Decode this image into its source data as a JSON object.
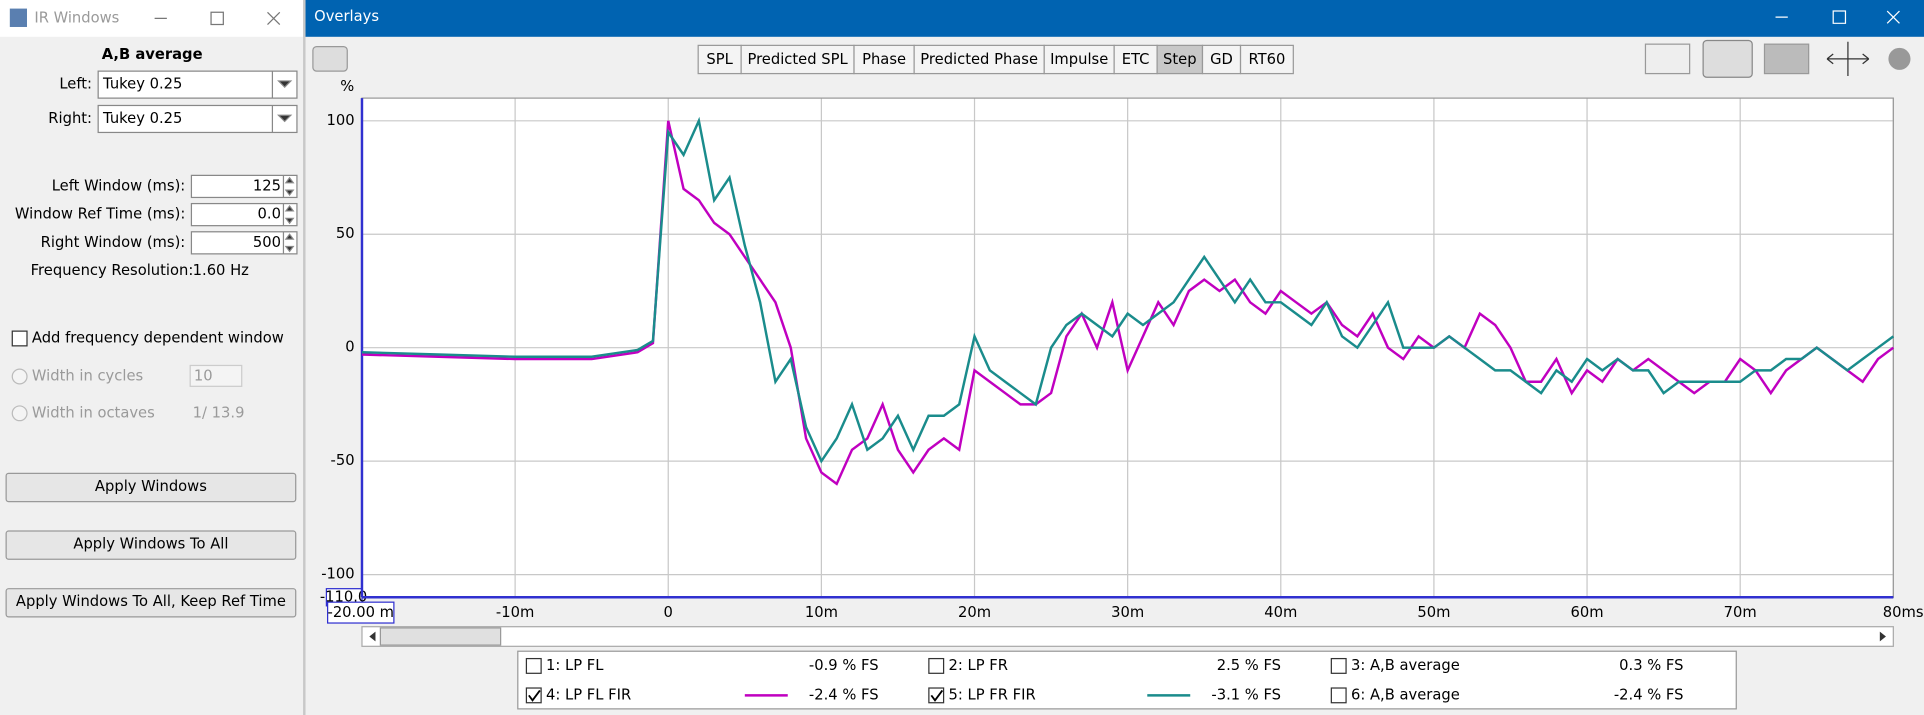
{
  "ir_window": {
    "title": "IR Windows",
    "measurement": "A,B average",
    "left_label": "Left:",
    "left_value": "Tukey 0.25",
    "right_label": "Right:",
    "right_value": "Tukey 0.25",
    "fields": [
      {
        "label": "Left Window (ms):",
        "value": 125
      },
      {
        "label": "Window Ref Time (ms):",
        "value": "0.0"
      },
      {
        "label": "Right Window (ms):",
        "value": 500
      }
    ],
    "resolution_label": "Frequency Resolution:",
    "resolution_value": "1.60 Hz",
    "freq_dep_label": "Add frequency dependent window",
    "cycles_label": "Width in cycles",
    "cycles_value": 10,
    "octaves_label": "Width in octaves",
    "octaves_value": "1/ 13.9",
    "buttons": [
      "Apply Windows",
      "Apply Windows To All",
      "Apply Windows To All, Keep Ref Time"
    ]
  },
  "overlays": {
    "title": "Overlays",
    "tabs": [
      "SPL",
      "Predicted SPL",
      "Phase",
      "Predicted Phase",
      "Impulse",
      "ETC",
      "Step",
      "GD",
      "RT60"
    ],
    "active_tab": "Step",
    "other_traces": [
      {
        "name": "1: LP FL",
        "readout": "-0.9 % FS",
        "color": "#c00000",
        "checked": false
      },
      {
        "name": "2: LP FR",
        "readout": "2.5 % FS",
        "color": "#008000",
        "checked": false
      },
      {
        "name": "3: A,B average",
        "readout": "0.3 % FS",
        "color": "#4040c0",
        "checked": false
      },
      {
        "name": "6: A,B average",
        "readout": "-2.4 % FS",
        "color": "#c08000",
        "checked": false
      }
    ]
  },
  "chart_data": {
    "type": "line",
    "y_label": "%",
    "grid": true,
    "x": [
      -20,
      -15,
      -10,
      -5,
      -2,
      -1,
      0,
      1,
      2,
      3,
      4,
      5,
      6,
      7,
      8,
      9,
      10,
      11,
      12,
      13,
      14,
      15,
      16,
      17,
      18,
      19,
      20,
      21,
      22,
      23,
      24,
      25,
      26,
      27,
      28,
      29,
      30,
      31,
      32,
      33,
      34,
      35,
      36,
      37,
      38,
      39,
      40,
      41,
      42,
      43,
      44,
      45,
      46,
      47,
      48,
      49,
      50,
      51,
      52,
      53,
      54,
      55,
      56,
      57,
      58,
      59,
      60,
      61,
      62,
      63,
      64,
      65,
      66,
      67,
      68,
      69,
      70,
      71,
      72,
      73,
      74,
      75,
      76,
      77,
      78,
      79,
      80
    ],
    "xlim": [
      -20,
      80
    ],
    "ylim": [
      -110,
      110
    ],
    "xticks": [
      {
        "value": -20,
        "label": "-20.00 m"
      },
      {
        "value": -10,
        "label": "-10m"
      },
      0,
      {
        "value": 10,
        "label": "10m"
      },
      {
        "value": 20,
        "label": "20m"
      },
      {
        "value": 30,
        "label": "30m"
      },
      {
        "value": 40,
        "label": "40m"
      },
      {
        "value": 50,
        "label": "50m"
      },
      {
        "value": 60,
        "label": "60m"
      },
      {
        "value": 70,
        "label": "70m"
      },
      {
        "value": 80,
        "label": "80ms"
      }
    ],
    "yticks": [
      {
        "value": -110,
        "label": "-110.0"
      },
      -100,
      -50,
      0,
      50,
      100
    ],
    "series": [
      {
        "name": "4: LP FL FIR",
        "readout": "-2.4 % FS",
        "color": "#c000c0",
        "checked": true,
        "values": [
          -3,
          -4,
          -5,
          -5,
          -2,
          2,
          100,
          70,
          65,
          55,
          50,
          40,
          30,
          20,
          0,
          -40,
          -55,
          -60,
          -45,
          -40,
          -25,
          -45,
          -55,
          -45,
          -40,
          -45,
          -10,
          -15,
          -20,
          -25,
          -25,
          -20,
          5,
          15,
          0,
          20,
          -10,
          5,
          20,
          10,
          25,
          30,
          25,
          30,
          20,
          15,
          25,
          20,
          15,
          20,
          10,
          5,
          15,
          0,
          -5,
          5,
          0,
          5,
          0,
          15,
          10,
          0,
          -15,
          -15,
          -5,
          -20,
          -10,
          -15,
          -5,
          -10,
          -5,
          -10,
          -15,
          -20,
          -15,
          -15,
          -5,
          -10,
          -20,
          -10,
          -5,
          0,
          -5,
          -10,
          -15,
          -5,
          0
        ]
      },
      {
        "name": "5: LP FR FIR",
        "readout": "-3.1 % FS",
        "color": "#1a8c8c",
        "checked": true,
        "values": [
          -2,
          -3,
          -4,
          -4,
          -1,
          3,
          95,
          85,
          100,
          65,
          75,
          45,
          20,
          -15,
          -5,
          -35,
          -50,
          -40,
          -25,
          -45,
          -40,
          -30,
          -45,
          -30,
          -30,
          -25,
          5,
          -10,
          -15,
          -20,
          -25,
          0,
          10,
          15,
          10,
          5,
          15,
          10,
          15,
          20,
          30,
          40,
          30,
          20,
          30,
          20,
          20,
          15,
          10,
          20,
          5,
          0,
          10,
          20,
          0,
          0,
          0,
          5,
          0,
          -5,
          -10,
          -10,
          -15,
          -20,
          -10,
          -15,
          -5,
          -10,
          -5,
          -10,
          -10,
          -20,
          -15,
          -15,
          -15,
          -15,
          -15,
          -10,
          -10,
          -5,
          -5,
          0,
          -5,
          -10,
          -5,
          0,
          5
        ]
      }
    ]
  }
}
